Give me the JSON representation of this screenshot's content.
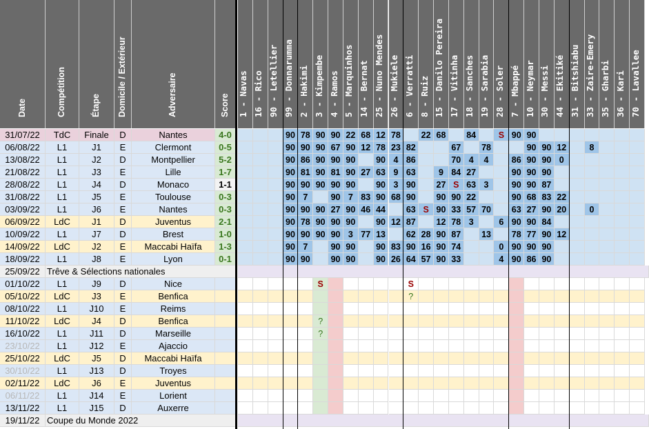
{
  "headers": {
    "date": "Date",
    "competition": "Compétition",
    "stage": "Étape",
    "venue": "Domicile / Extérieur",
    "opponent": "Adversaire",
    "score": "Score"
  },
  "players": [
    "1 - Navas",
    "16 - Rico",
    "90 - Letellier",
    "99 - Donnarumma",
    "2 - Hakimi",
    "3 - Kimpembe",
    "4 - Ramos",
    "5 - Marquinhos",
    "14 - Bernat",
    "25 - Nuno Mendes",
    "26 - Mukiele",
    "6 - Verratti",
    "8 - Ruiz",
    "15 - Danilo Pereira",
    "17 - Vitinha",
    "18 - Sanches",
    "19 - Sarabia",
    "28 - Soler",
    "7 - Mbappé",
    "10 - Neymar",
    "30 - Messi",
    "44 - Ekitiké",
    "31 - Bitshiabu",
    "33 - Zaire-Emery",
    "35 - Gharbi",
    "36 - Kari",
    "70 - Lavallee"
  ],
  "rows": [
    {
      "date": "31/07/22",
      "comp": "TdC",
      "stage": "Finale",
      "venue": "D",
      "opp": "Nantes",
      "score": "4-0",
      "result": "W",
      "bg": "#ead1dc",
      "cells": [
        "",
        "",
        "",
        "90",
        "78",
        "90",
        "90",
        "22",
        "68",
        "12",
        "78",
        "",
        "22",
        "68",
        "",
        "84",
        "",
        "S",
        "90",
        "90",
        "",
        "",
        "",
        "",
        "",
        "",
        ""
      ]
    },
    {
      "date": "06/08/22",
      "comp": "L1",
      "stage": "J1",
      "venue": "E",
      "opp": "Clermont",
      "score": "0-5",
      "result": "W",
      "bg": "#dbe7f6",
      "cells": [
        "",
        "",
        "",
        "90",
        "90",
        "90",
        "67",
        "90",
        "12",
        "78",
        "23",
        "82",
        "",
        "",
        "67",
        "",
        "78",
        "",
        "",
        "90",
        "90",
        "12",
        "",
        "8",
        "",
        "",
        ""
      ]
    },
    {
      "date": "13/08/22",
      "comp": "L1",
      "stage": "J2",
      "venue": "D",
      "opp": "Montpellier",
      "score": "5-2",
      "result": "W",
      "bg": "#dbe7f6",
      "cells": [
        "",
        "",
        "",
        "90",
        "86",
        "90",
        "90",
        "90",
        "",
        "90",
        "4",
        "86",
        "",
        "",
        "70",
        "4",
        "4",
        "",
        "86",
        "90",
        "90",
        "0",
        "",
        "",
        "",
        "",
        ""
      ]
    },
    {
      "date": "21/08/22",
      "comp": "L1",
      "stage": "J3",
      "venue": "E",
      "opp": "Lille",
      "score": "1-7",
      "result": "W",
      "bg": "#dbe7f6",
      "cells": [
        "",
        "",
        "",
        "90",
        "81",
        "90",
        "81",
        "90",
        "27",
        "63",
        "9",
        "63",
        "",
        "9",
        "84",
        "27",
        "",
        "",
        "90",
        "90",
        "90",
        "",
        "",
        "",
        "",
        "",
        ""
      ]
    },
    {
      "date": "28/08/22",
      "comp": "L1",
      "stage": "J4",
      "venue": "D",
      "opp": "Monaco",
      "score": "1-1",
      "result": "D",
      "bg": "#dbe7f6",
      "cells": [
        "",
        "",
        "",
        "90",
        "90",
        "90",
        "90",
        "90",
        "",
        "90",
        "3",
        "90",
        "",
        "27",
        "S",
        "63",
        "3",
        "",
        "90",
        "90",
        "87",
        "",
        "",
        "",
        "",
        "",
        ""
      ]
    },
    {
      "date": "31/08/22",
      "comp": "L1",
      "stage": "J5",
      "venue": "E",
      "opp": "Toulouse",
      "score": "0-3",
      "result": "W",
      "bg": "#dbe7f6",
      "cells": [
        "",
        "",
        "",
        "90",
        "7",
        "",
        "90",
        "7",
        "83",
        "90",
        "68",
        "90",
        "",
        "90",
        "90",
        "22",
        "",
        "",
        "90",
        "68",
        "83",
        "22",
        "",
        "",
        "",
        "",
        ""
      ]
    },
    {
      "date": "03/09/22",
      "comp": "L1",
      "stage": "J6",
      "venue": "E",
      "opp": "Nantes",
      "score": "0-3",
      "result": "W",
      "bg": "#dbe7f6",
      "cells": [
        "",
        "",
        "",
        "90",
        "90",
        "90",
        "27",
        "90",
        "46",
        "44",
        "",
        "63",
        "S",
        "90",
        "33",
        "57",
        "70",
        "",
        "63",
        "27",
        "90",
        "20",
        "",
        "0",
        "",
        "",
        ""
      ]
    },
    {
      "date": "06/09/22",
      "comp": "LdC",
      "stage": "J1",
      "venue": "D",
      "opp": "Juventus",
      "score": "2-1",
      "result": "W",
      "bg": "#fff2cc",
      "cells": [
        "",
        "",
        "",
        "90",
        "78",
        "90",
        "90",
        "90",
        "",
        "90",
        "12",
        "87",
        "",
        "12",
        "78",
        "3",
        "",
        "6",
        "90",
        "90",
        "84",
        "",
        "",
        "",
        "",
        "",
        ""
      ]
    },
    {
      "date": "10/09/22",
      "comp": "L1",
      "stage": "J7",
      "venue": "D",
      "opp": "Brest",
      "score": "1-0",
      "result": "W",
      "bg": "#dbe7f6",
      "cells": [
        "",
        "",
        "",
        "90",
        "90",
        "90",
        "90",
        "3",
        "77",
        "13",
        "",
        "62",
        "28",
        "90",
        "87",
        "",
        "13",
        "",
        "78",
        "77",
        "90",
        "12",
        "",
        "",
        "",
        "",
        ""
      ]
    },
    {
      "date": "14/09/22",
      "comp": "LdC",
      "stage": "J2",
      "venue": "E",
      "opp": "Maccabi Haïfa",
      "score": "1-3",
      "result": "W",
      "bg": "#fff2cc",
      "cells": [
        "",
        "",
        "",
        "90",
        "7",
        "",
        "90",
        "90",
        "",
        "90",
        "83",
        "90",
        "16",
        "90",
        "74",
        "",
        "",
        "0",
        "90",
        "90",
        "90",
        "",
        "",
        "",
        "",
        "",
        ""
      ]
    },
    {
      "date": "18/09/22",
      "comp": "L1",
      "stage": "J8",
      "venue": "E",
      "opp": "Lyon",
      "score": "0-1",
      "result": "W",
      "bg": "#dbe7f6",
      "cells": [
        "",
        "",
        "",
        "90",
        "90",
        "",
        "90",
        "90",
        "",
        "90",
        "26",
        "64",
        "57",
        "90",
        "33",
        "",
        "",
        "4",
        "90",
        "86",
        "90",
        "",
        "",
        "",
        "",
        "",
        ""
      ]
    },
    {
      "date": "25/09/22",
      "break": "Trêve & Sélections nationales"
    },
    {
      "date": "01/10/22",
      "comp": "L1",
      "stage": "J9",
      "venue": "D",
      "opp": "Nice",
      "score": "",
      "bg": "#dbe7f6",
      "cells": [
        "",
        "",
        "",
        "",
        "",
        "S",
        "",
        "",
        "",
        "",
        "",
        "S",
        "",
        "",
        "",
        "",
        "",
        "",
        "",
        "",
        "",
        "",
        "",
        "",
        "",
        "",
        ""
      ]
    },
    {
      "date": "05/10/22",
      "comp": "LdC",
      "stage": "J3",
      "venue": "E",
      "opp": "Benfica",
      "score": "",
      "bg": "#fff2cc",
      "cells": [
        "",
        "",
        "",
        "",
        "",
        "",
        "",
        "",
        "",
        "",
        "",
        "?",
        "",
        "",
        "",
        "",
        "",
        "",
        "",
        "",
        "",
        "",
        "",
        "",
        "",
        "",
        ""
      ]
    },
    {
      "date": "08/10/22",
      "comp": "L1",
      "stage": "J10",
      "venue": "E",
      "opp": "Reims",
      "score": "",
      "bg": "#dbe7f6",
      "cells": []
    },
    {
      "date": "11/10/22",
      "comp": "LdC",
      "stage": "J4",
      "venue": "D",
      "opp": "Benfica",
      "score": "",
      "bg": "#fff2cc",
      "cells": [
        "",
        "",
        "",
        "",
        "",
        "?",
        "",
        "",
        "",
        "",
        "",
        "",
        "",
        "",
        "",
        "",
        "",
        "",
        "",
        "",
        "",
        "",
        "",
        "",
        "",
        "",
        ""
      ]
    },
    {
      "date": "16/10/22",
      "comp": "L1",
      "stage": "J11",
      "venue": "D",
      "opp": "Marseille",
      "score": "",
      "bg": "#dbe7f6",
      "cells": [
        "",
        "",
        "",
        "",
        "",
        "?",
        "",
        "",
        "",
        "",
        "",
        "",
        "",
        "",
        "",
        "",
        "",
        "",
        "",
        "",
        "",
        "",
        "",
        "",
        "",
        "",
        ""
      ]
    },
    {
      "date": "23/10/22",
      "comp": "L1",
      "stage": "J12",
      "venue": "E",
      "opp": "Ajaccio",
      "score": "",
      "bg": "#dbe7f6",
      "grey": true,
      "cells": []
    },
    {
      "date": "25/10/22",
      "comp": "LdC",
      "stage": "J5",
      "venue": "D",
      "opp": "Maccabi Haïfa",
      "score": "",
      "bg": "#fff2cc",
      "cells": []
    },
    {
      "date": "30/10/22",
      "comp": "L1",
      "stage": "J13",
      "venue": "D",
      "opp": "Troyes",
      "score": "",
      "bg": "#dbe7f6",
      "grey": true,
      "cells": []
    },
    {
      "date": "02/11/22",
      "comp": "LdC",
      "stage": "J6",
      "venue": "E",
      "opp": "Juventus",
      "score": "",
      "bg": "#fff2cc",
      "cells": []
    },
    {
      "date": "06/11/22",
      "comp": "L1",
      "stage": "J14",
      "venue": "E",
      "opp": "Lorient",
      "score": "",
      "bg": "#dbe7f6",
      "grey": true,
      "cells": []
    },
    {
      "date": "13/11/22",
      "comp": "L1",
      "stage": "J15",
      "venue": "D",
      "opp": "Auxerre",
      "score": "",
      "bg": "#dbe7f6",
      "cells": []
    },
    {
      "date": "19/11/22",
      "break": "Coupe du Monde 2022"
    }
  ],
  "colors": {
    "header": "#6a6a6a",
    "win": "#93c47d",
    "draw": "#000000",
    "loss": "#e06666",
    "played": "#9fc5e8",
    "sub": "#c9daf8",
    "yellowText": "#e6d800",
    "greenText": "#38761d",
    "suspended": "#990000",
    "futureL1": "#d0e0f3",
    "futureLdC": "#fff2cc",
    "breakRow": "#efefef"
  }
}
